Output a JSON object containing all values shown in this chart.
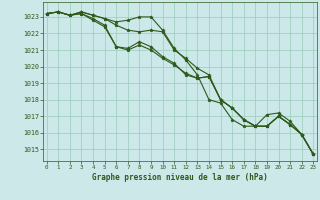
{
  "title": "Graphe pression niveau de la mer (hPa)",
  "background_color": "#cce8e8",
  "plot_bg_color": "#cce8e8",
  "line_color": "#2d5a1b",
  "grid_color": "#99ccbb",
  "ylim": [
    1014.3,
    1023.9
  ],
  "yticks": [
    1015,
    1016,
    1017,
    1018,
    1019,
    1020,
    1021,
    1022,
    1023
  ],
  "xlim": [
    -0.3,
    23.3
  ],
  "xticks": [
    0,
    1,
    2,
    3,
    4,
    5,
    6,
    7,
    8,
    9,
    10,
    11,
    12,
    13,
    14,
    15,
    16,
    17,
    18,
    19,
    20,
    21,
    22,
    23
  ],
  "series": [
    [
      1023.2,
      1023.3,
      1023.1,
      1023.3,
      1023.1,
      1022.9,
      1022.7,
      1022.8,
      1023.0,
      1023.0,
      1022.2,
      1021.1,
      1020.4,
      1019.5,
      1018.0,
      1017.8,
      1016.8,
      1016.4,
      1016.4,
      1017.1,
      1017.2,
      1016.7,
      1015.9,
      1014.7
    ],
    [
      1023.2,
      1023.3,
      1023.1,
      1023.3,
      1023.1,
      1022.9,
      1022.5,
      1022.2,
      1022.1,
      1022.2,
      1022.1,
      1021.0,
      1020.5,
      1019.9,
      1019.5,
      1018.0,
      1017.5,
      1016.8,
      1016.4,
      1016.4,
      1017.0,
      1016.5,
      1015.9,
      1014.7
    ],
    [
      1023.2,
      1023.3,
      1023.1,
      1023.2,
      1022.8,
      1022.4,
      1021.2,
      1021.0,
      1021.3,
      1021.0,
      1020.5,
      1020.1,
      1019.6,
      1019.3,
      1019.4,
      1018.0,
      1017.5,
      1016.8,
      1016.4,
      1016.4,
      1017.0,
      1016.5,
      1015.9,
      1014.7
    ],
    [
      1023.2,
      1023.3,
      1023.1,
      1023.2,
      1022.9,
      1022.5,
      1021.2,
      1021.1,
      1021.5,
      1021.2,
      1020.6,
      1020.2,
      1019.5,
      1019.3,
      1019.4,
      1018.0,
      1017.5,
      1016.8,
      1016.4,
      1016.4,
      1017.0,
      1016.5,
      1015.9,
      1014.7
    ]
  ]
}
